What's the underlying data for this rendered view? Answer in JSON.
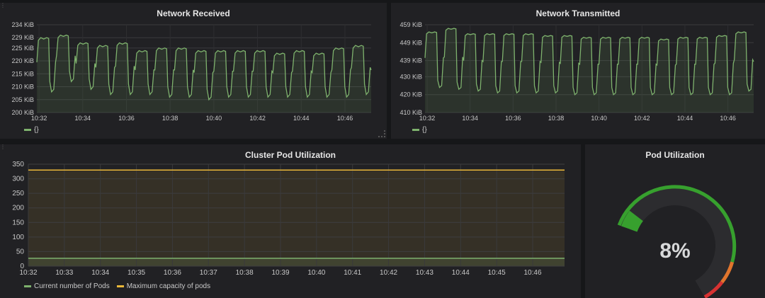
{
  "colors": {
    "green": "#7eb26d",
    "yellow": "#eab839",
    "gauge_green": "#37a02e",
    "gauge_orange": "#e0752d",
    "gauge_red": "#d63232"
  },
  "network_received": {
    "title": "Network Received",
    "legend": "{}",
    "chart_data": {
      "type": "line",
      "ylim": [
        200,
        234
      ],
      "y_ticks": [
        "200 KiB",
        "205 KiB",
        "210 KiB",
        "215 KiB",
        "220 KiB",
        "225 KiB",
        "229 KiB",
        "234 KiB"
      ],
      "y_tick_values": [
        200,
        205,
        210,
        215,
        220,
        225,
        229,
        234
      ],
      "x_ticks": [
        "10:32",
        "10:34",
        "10:36",
        "10:38",
        "10:40",
        "10:42",
        "10:44",
        "10:46"
      ],
      "x_tick_minutes": [
        32,
        34,
        36,
        38,
        40,
        42,
        44,
        46
      ],
      "xlim_minutes": [
        31.9,
        47.2
      ],
      "high": [
        229,
        230,
        227,
        226,
        227,
        224,
        225,
        225,
        224,
        224,
        224,
        224,
        223,
        224,
        223,
        225,
        226
      ],
      "low": [
        208,
        212,
        209,
        207,
        207,
        207,
        206,
        206,
        205,
        206,
        206,
        206,
        206,
        206,
        206,
        206,
        207
      ]
    }
  },
  "network_transmitted": {
    "title": "Network Transmitted",
    "legend": "{}",
    "chart_data": {
      "type": "line",
      "ylim": [
        410,
        459
      ],
      "y_ticks": [
        "410 KiB",
        "420 KiB",
        "430 KiB",
        "439 KiB",
        "449 KiB",
        "459 KiB"
      ],
      "y_tick_values": [
        410,
        420,
        430,
        439,
        449,
        459
      ],
      "x_ticks": [
        "10:32",
        "10:34",
        "10:36",
        "10:38",
        "10:40",
        "10:42",
        "10:44",
        "10:46"
      ],
      "x_tick_minutes": [
        32,
        34,
        36,
        38,
        40,
        42,
        44,
        46
      ],
      "xlim_minutes": [
        31.9,
        47.2
      ],
      "high": [
        455,
        457,
        454,
        454,
        454,
        454,
        453,
        453,
        452,
        452,
        452,
        452,
        451,
        452,
        452,
        453,
        455
      ],
      "low": [
        424,
        423,
        422,
        421,
        421,
        421,
        421,
        420,
        420,
        420,
        420,
        420,
        420,
        420,
        420,
        420,
        422
      ]
    }
  },
  "cluster_pod_utilization": {
    "title": "Cluster Pod Utilization",
    "chart_data": {
      "type": "line",
      "ylim": [
        0,
        350
      ],
      "y_ticks": [
        "0",
        "50",
        "100",
        "150",
        "200",
        "250",
        "300",
        "350"
      ],
      "y_tick_values": [
        0,
        50,
        100,
        150,
        200,
        250,
        300,
        350
      ],
      "x_ticks": [
        "10:32",
        "10:33",
        "10:34",
        "10:35",
        "10:36",
        "10:37",
        "10:38",
        "10:39",
        "10:40",
        "10:41",
        "10:42",
        "10:43",
        "10:44",
        "10:45",
        "10:46"
      ],
      "series": [
        {
          "name": "Current number of Pods",
          "color": "#7eb26d",
          "value": 27
        },
        {
          "name": "Maximum capacity of pods",
          "color": "#eab839",
          "value": 330
        }
      ]
    }
  },
  "pod_utilization": {
    "title": "Pod Utilization",
    "value": 8,
    "value_text": "8%"
  }
}
